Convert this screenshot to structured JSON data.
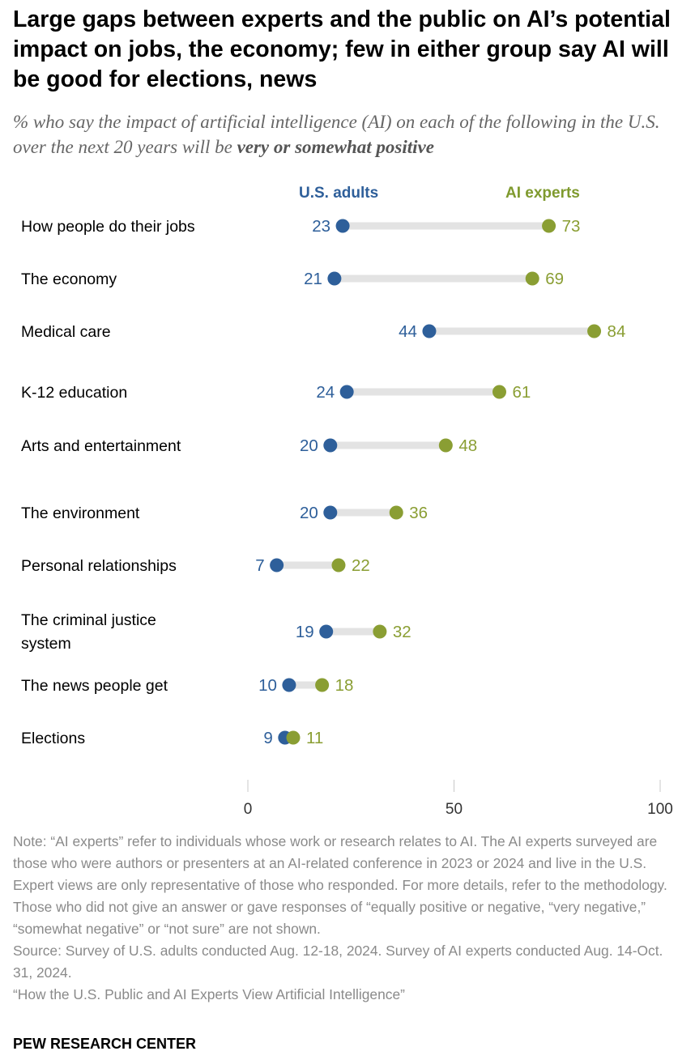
{
  "title": "Large gaps between experts and the public on AI’s potential impact on jobs, the economy; few in either group say AI will be good for elections, news",
  "subtitle_pre": "% who say the impact of artificial intelligence (AI) on each of the following in the U.S. over the next 20 years will be ",
  "subtitle_emph": "very or somewhat positive",
  "colors": {
    "adults": "#2e5f9a",
    "experts": "#8a9e33",
    "connector": "#e3e3e3",
    "axis_tick": "#c8c8c8"
  },
  "chart_data": {
    "type": "dot-plot",
    "categories": [
      "How people do their jobs",
      "The economy",
      "Medical care",
      "K-12 education",
      "Arts and entertainment",
      "The environment",
      "Personal relationships",
      "The criminal justice system",
      "The news people get",
      "Elections"
    ],
    "series": [
      {
        "name": "U.S. adults",
        "values": [
          23,
          21,
          44,
          24,
          20,
          20,
          7,
          19,
          10,
          9
        ]
      },
      {
        "name": "AI experts",
        "values": [
          73,
          69,
          84,
          61,
          48,
          36,
          22,
          32,
          18,
          11
        ]
      }
    ],
    "xlim": [
      0,
      100
    ],
    "xticks": [
      "0",
      "50",
      "100"
    ],
    "grid": false,
    "legend": "top, above series"
  },
  "note": "Note: “AI experts” refer to individuals whose work or research relates to AI. The AI experts surveyed are those who were authors or presenters at an AI-related conference in 2023 or 2024 and live in the U.S. Expert views are only representative of those who responded. For more details, refer to the methodology. Those who did not give an answer or gave responses of “equally positive or negative, “very negative,” “somewhat negative” or “not sure” are not shown.",
  "source": "Source: Survey of U.S. adults conducted Aug. 12-18, 2024. Survey of AI experts conducted Aug. 14-Oct. 31, 2024.",
  "report": "“How the U.S. Public and AI Experts View Artificial Intelligence”",
  "footer": "PEW RESEARCH CENTER"
}
